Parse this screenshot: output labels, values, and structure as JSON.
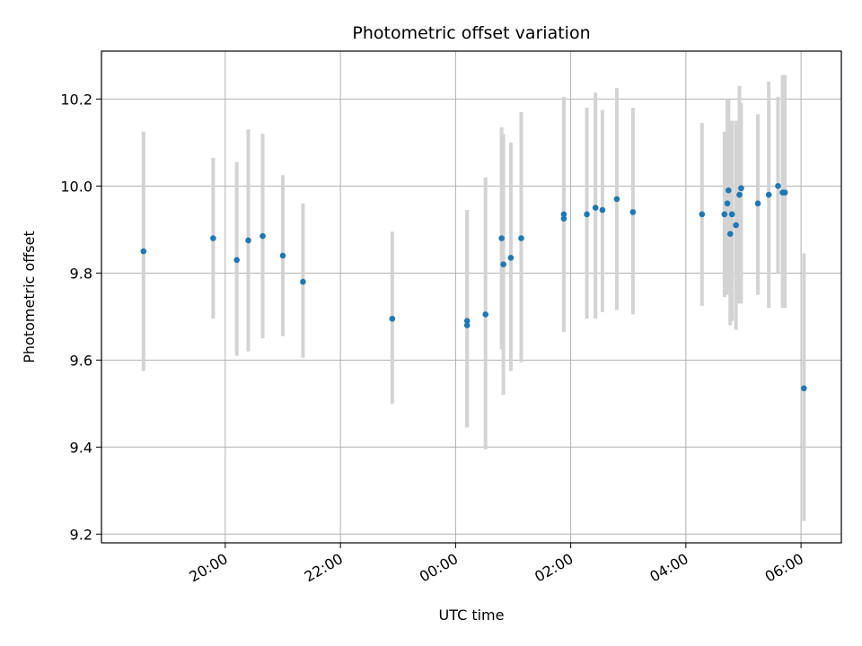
{
  "chart_data": {
    "type": "scatter",
    "title": "Photometric offset variation",
    "xlabel": "UTC time",
    "ylabel": "Photometric offset",
    "x_unit": "hours",
    "xlim": [
      17.85,
      30.7
    ],
    "ylim": [
      9.18,
      10.31
    ],
    "x_ticks": [
      {
        "value": 20,
        "label": "20:00"
      },
      {
        "value": 22,
        "label": "22:00"
      },
      {
        "value": 24,
        "label": "00:00"
      },
      {
        "value": 26,
        "label": "02:00"
      },
      {
        "value": 28,
        "label": "04:00"
      },
      {
        "value": 30,
        "label": "06:00"
      }
    ],
    "y_ticks": [
      {
        "value": 9.2,
        "label": "9.2"
      },
      {
        "value": 9.4,
        "label": "9.4"
      },
      {
        "value": 9.6,
        "label": "9.6"
      },
      {
        "value": 9.8,
        "label": "9.8"
      },
      {
        "value": 10.0,
        "label": "10.0"
      },
      {
        "value": 10.2,
        "label": "10.2"
      }
    ],
    "grid": true,
    "colors": {
      "point": "#1f77b4",
      "errorbar": "#d3d3d3",
      "grid": "#b0b0b0"
    },
    "points": [
      {
        "x": 18.58,
        "y": 9.85,
        "lo": 9.575,
        "hi": 10.125
      },
      {
        "x": 19.79,
        "y": 9.88,
        "lo": 9.695,
        "hi": 10.065
      },
      {
        "x": 20.2,
        "y": 9.83,
        "lo": 9.61,
        "hi": 10.055
      },
      {
        "x": 20.4,
        "y": 9.875,
        "lo": 9.62,
        "hi": 10.13
      },
      {
        "x": 20.65,
        "y": 9.885,
        "lo": 9.65,
        "hi": 10.12
      },
      {
        "x": 21.0,
        "y": 9.84,
        "lo": 9.655,
        "hi": 10.025
      },
      {
        "x": 21.35,
        "y": 9.78,
        "lo": 9.605,
        "hi": 9.96
      },
      {
        "x": 22.9,
        "y": 9.695,
        "lo": 9.5,
        "hi": 9.895
      },
      {
        "x": 24.2,
        "y": 9.69,
        "lo": 9.445,
        "hi": 9.945
      },
      {
        "x": 24.2,
        "y": 9.68,
        "lo": 9.445,
        "hi": 9.945
      },
      {
        "x": 24.52,
        "y": 9.705,
        "lo": 9.395,
        "hi": 10.02
      },
      {
        "x": 24.8,
        "y": 9.88,
        "lo": 9.625,
        "hi": 10.135
      },
      {
        "x": 24.83,
        "y": 9.82,
        "lo": 9.52,
        "hi": 10.12
      },
      {
        "x": 24.96,
        "y": 9.835,
        "lo": 9.575,
        "hi": 10.1
      },
      {
        "x": 25.14,
        "y": 9.88,
        "lo": 9.595,
        "hi": 10.17
      },
      {
        "x": 25.88,
        "y": 9.935,
        "lo": 9.665,
        "hi": 10.205
      },
      {
        "x": 25.88,
        "y": 9.925,
        "lo": 9.665,
        "hi": 10.2
      },
      {
        "x": 26.28,
        "y": 9.935,
        "lo": 9.695,
        "hi": 10.18
      },
      {
        "x": 26.43,
        "y": 9.95,
        "lo": 9.695,
        "hi": 10.215
      },
      {
        "x": 26.55,
        "y": 9.945,
        "lo": 9.71,
        "hi": 10.175
      },
      {
        "x": 26.8,
        "y": 9.97,
        "lo": 9.715,
        "hi": 10.225
      },
      {
        "x": 27.08,
        "y": 9.94,
        "lo": 9.705,
        "hi": 10.18
      },
      {
        "x": 28.28,
        "y": 9.935,
        "lo": 9.725,
        "hi": 10.145
      },
      {
        "x": 28.67,
        "y": 9.935,
        "lo": 9.745,
        "hi": 10.125
      },
      {
        "x": 28.72,
        "y": 9.96,
        "lo": 9.75,
        "hi": 10.2
      },
      {
        "x": 28.74,
        "y": 9.99,
        "lo": 9.755,
        "hi": 10.2
      },
      {
        "x": 28.77,
        "y": 9.89,
        "lo": 9.68,
        "hi": 10.145
      },
      {
        "x": 28.8,
        "y": 9.935,
        "lo": 9.69,
        "hi": 10.15
      },
      {
        "x": 28.87,
        "y": 9.91,
        "lo": 9.67,
        "hi": 10.15
      },
      {
        "x": 28.93,
        "y": 9.98,
        "lo": 9.73,
        "hi": 10.23
      },
      {
        "x": 28.96,
        "y": 9.995,
        "lo": 9.73,
        "hi": 10.19
      },
      {
        "x": 29.25,
        "y": 9.96,
        "lo": 9.75,
        "hi": 10.165
      },
      {
        "x": 29.44,
        "y": 9.98,
        "lo": 9.72,
        "hi": 10.24
      },
      {
        "x": 29.6,
        "y": 10.0,
        "lo": 9.8,
        "hi": 10.205
      },
      {
        "x": 29.68,
        "y": 9.985,
        "lo": 9.72,
        "hi": 10.255
      },
      {
        "x": 29.72,
        "y": 9.985,
        "lo": 9.72,
        "hi": 10.255
      },
      {
        "x": 30.05,
        "y": 9.535,
        "lo": 9.23,
        "hi": 9.845
      }
    ]
  }
}
